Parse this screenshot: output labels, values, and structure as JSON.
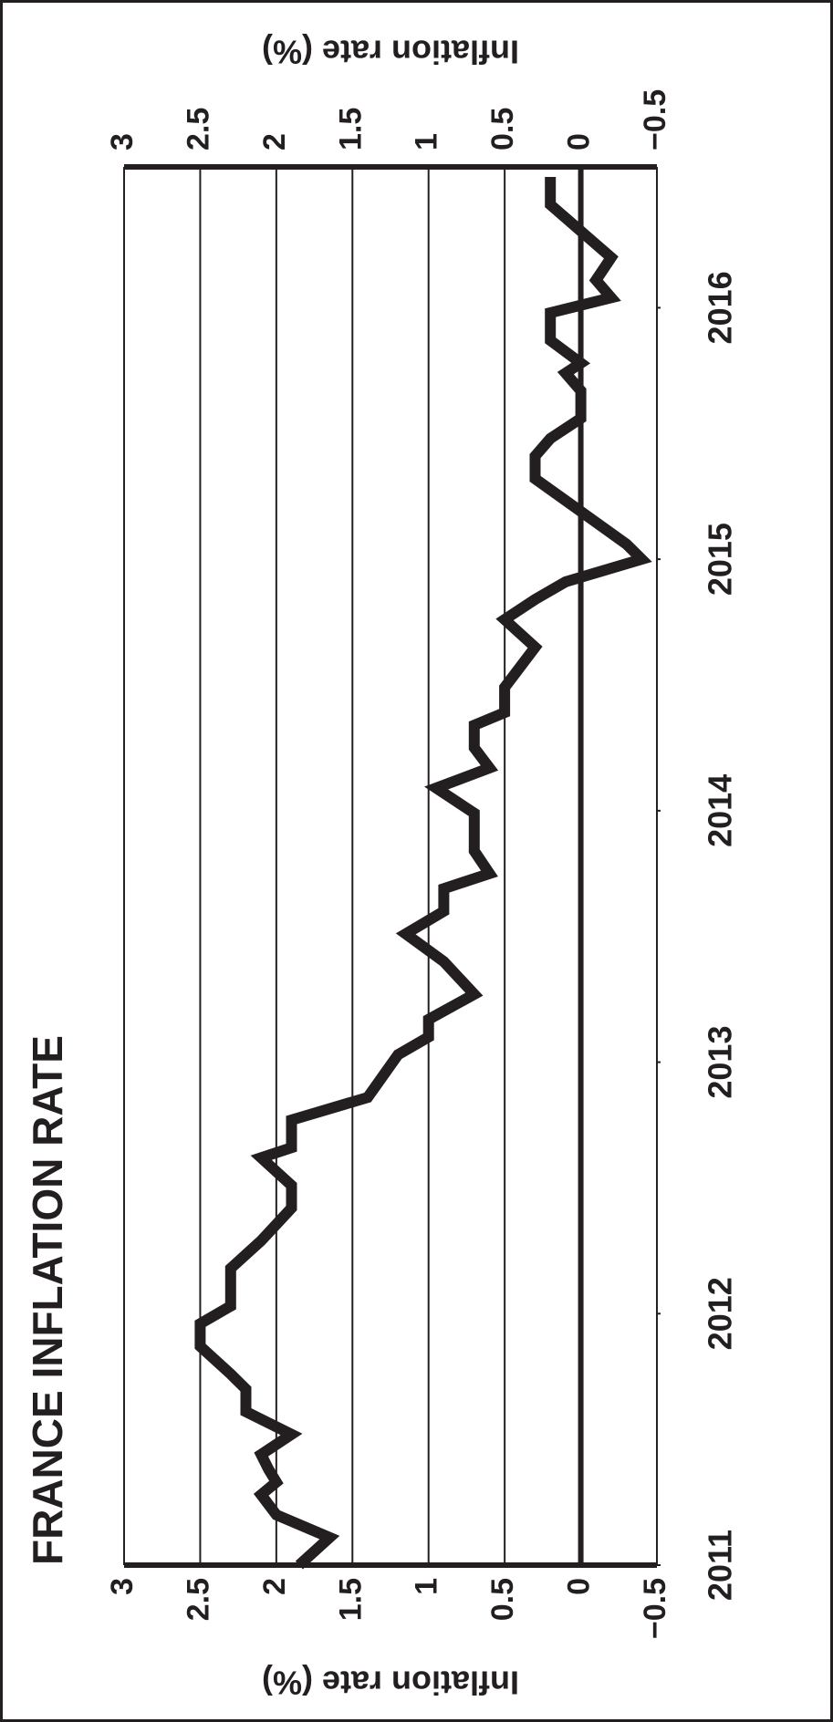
{
  "chart_data": {
    "type": "line",
    "title": "FRANCE INFLATION RATE",
    "y_label": "Inflation rate (%)",
    "color": "#231f20",
    "grid": true,
    "xlim": [
      2011,
      2016.56
    ],
    "xticks": [
      2011,
      2012,
      2013,
      2014,
      2015,
      2016
    ],
    "ylim": [
      -0.5,
      3
    ],
    "yticks": [
      {
        "value": -0.5,
        "label": "−0.5"
      },
      0,
      0.5,
      1,
      1.5,
      2,
      2.5,
      3
    ],
    "x": [
      2011.0,
      2011.11,
      2011.2,
      2011.28,
      2011.33,
      2011.38,
      2011.44,
      2011.52,
      2011.61,
      2011.7,
      2011.76,
      2011.87,
      2011.96,
      2012.03,
      2012.18,
      2012.29,
      2012.42,
      2012.51,
      2012.62,
      2012.66,
      2012.77,
      2012.86,
      2013.03,
      2013.1,
      2013.17,
      2013.27,
      2013.4,
      2013.51,
      2013.6,
      2013.69,
      2013.75,
      2013.84,
      2013.99,
      2014.09,
      2014.17,
      2014.25,
      2014.34,
      2014.39,
      2014.49,
      2014.65,
      2014.76,
      2014.84,
      2014.91,
      2015.0,
      2015.06,
      2015.19,
      2015.32,
      2015.41,
      2015.48,
      2015.56,
      2015.67,
      2015.74,
      2015.78,
      2015.87,
      2015.98,
      2016.04,
      2016.11,
      2016.2,
      2016.41,
      2016.52
    ],
    "values": [
      1.85,
      1.65,
      2.0,
      2.1,
      2.0,
      2.05,
      2.1,
      1.9,
      2.2,
      2.2,
      2.3,
      2.5,
      2.5,
      2.3,
      2.3,
      2.1,
      1.9,
      1.9,
      2.1,
      1.9,
      1.9,
      1.4,
      1.2,
      1.0,
      1.0,
      0.7,
      0.9,
      1.15,
      0.9,
      0.9,
      0.6,
      0.7,
      0.7,
      0.95,
      0.6,
      0.7,
      0.7,
      0.5,
      0.5,
      0.3,
      0.5,
      0.3,
      0.1,
      -0.4,
      -0.3,
      0,
      0.3,
      0.3,
      0.2,
      0,
      0,
      0.1,
      0,
      0.2,
      0.2,
      -0.2,
      -0.1,
      -0.2,
      0.2,
      0.2
    ]
  }
}
